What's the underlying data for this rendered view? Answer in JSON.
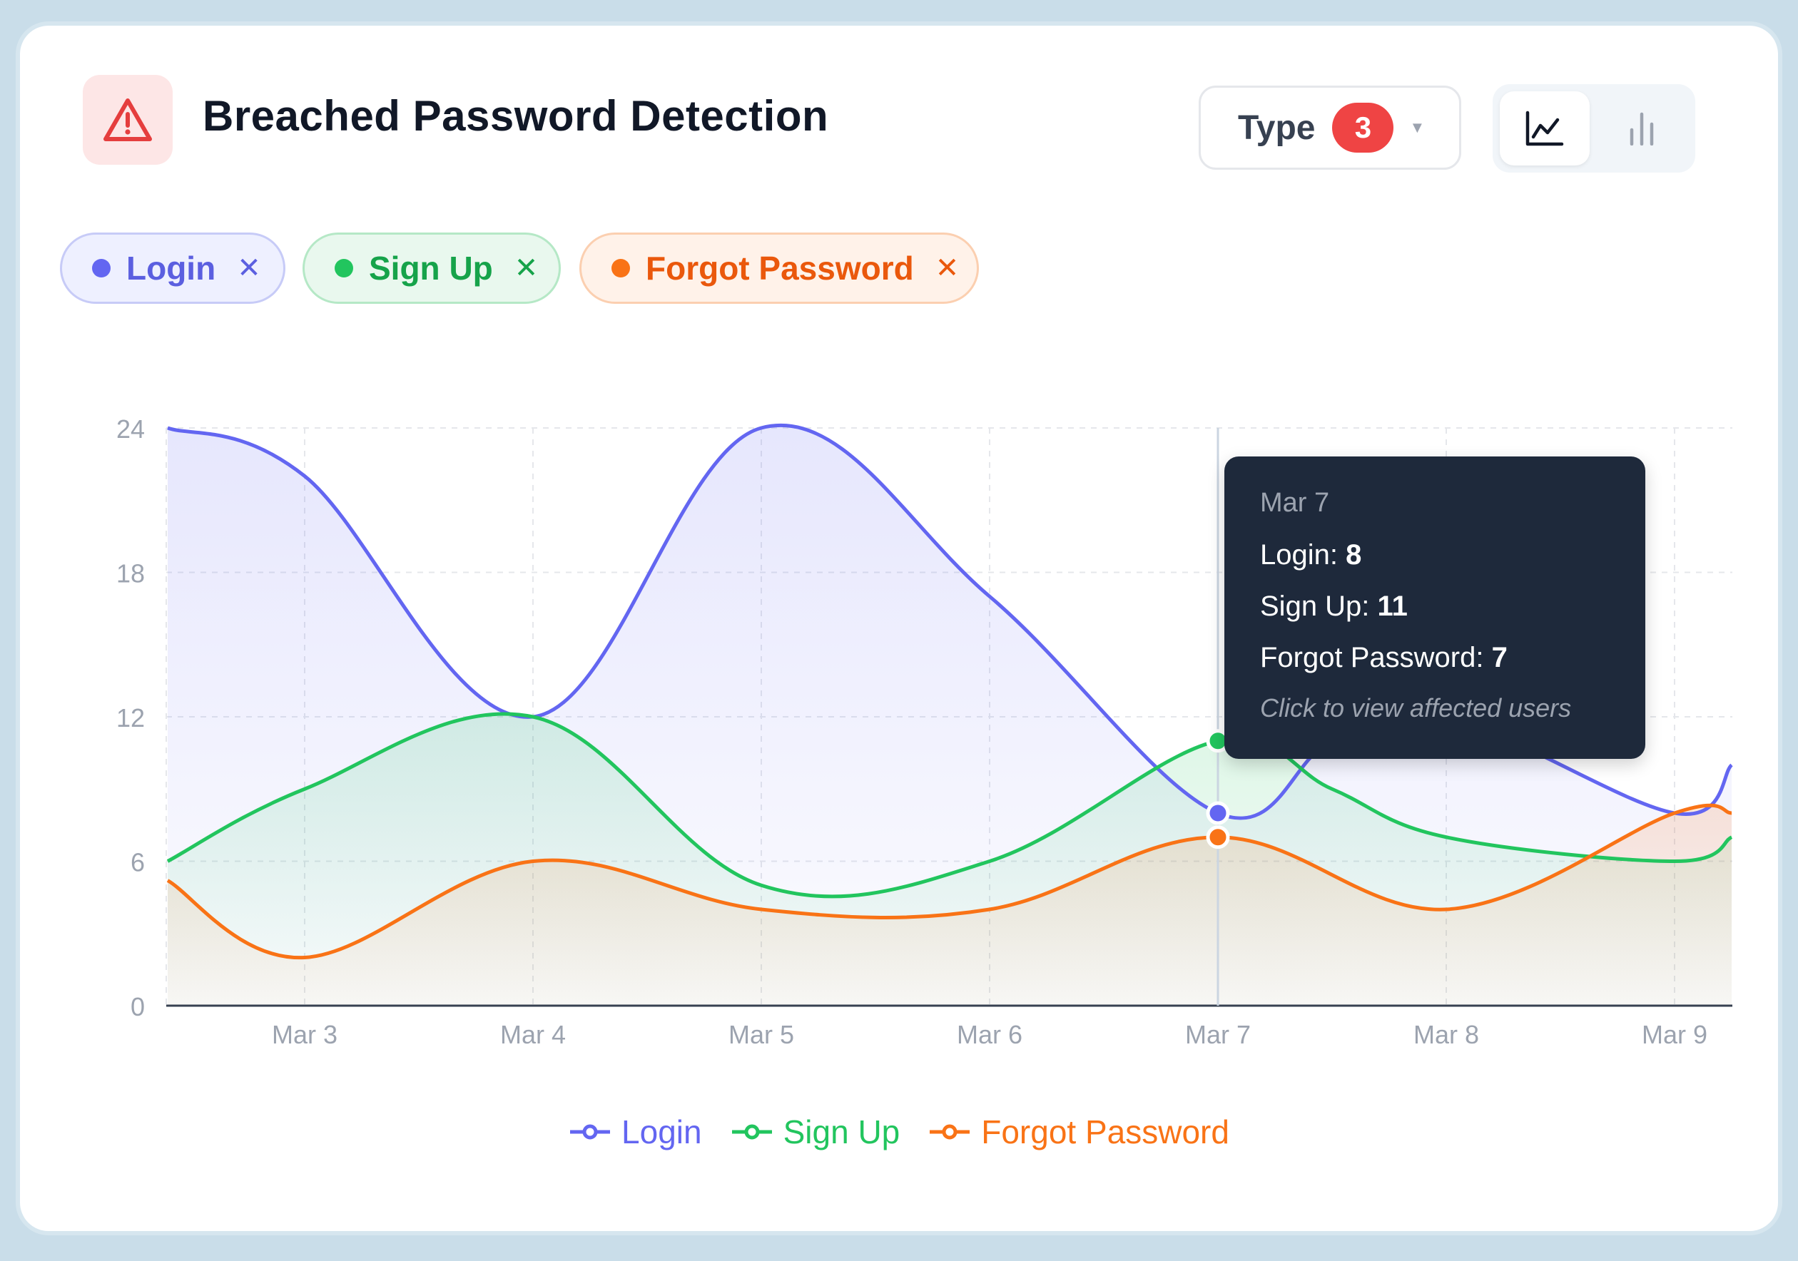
{
  "header": {
    "title": "Breached Password Detection",
    "icon": "alert-triangle-icon",
    "type_filter": {
      "label": "Type",
      "count": "3"
    },
    "view_modes": [
      {
        "name": "line-chart-icon",
        "active": true
      },
      {
        "name": "bar-chart-icon",
        "active": false
      }
    ]
  },
  "filters": [
    {
      "label": "Login",
      "color": "#6366f1"
    },
    {
      "label": "Sign Up",
      "color": "#22c55e"
    },
    {
      "label": "Forgot Password",
      "color": "#f97316"
    }
  ],
  "tooltip": {
    "date": "Mar 7",
    "rows": [
      {
        "label": "Login:",
        "value": "8"
      },
      {
        "label": "Sign Up:",
        "value": "11"
      },
      {
        "label": "Forgot Password:",
        "value": "7"
      }
    ],
    "hint": "Click to view affected users"
  },
  "chart_data": {
    "type": "area",
    "title": "",
    "xlabel": "",
    "ylabel": "",
    "x_ticks": [
      "Mar 3",
      "Mar 4",
      "Mar 5",
      "Mar 6",
      "Mar 7",
      "Mar 8",
      "Mar 9"
    ],
    "y_ticks": [
      0,
      6,
      12,
      18,
      24
    ],
    "ylim": [
      0,
      24
    ],
    "grid": true,
    "legend": "bottom-center",
    "highlight_x": "Mar 7",
    "series": [
      {
        "name": "Login",
        "color": "#6366f1",
        "points": [
          [
            -0.6,
            24
          ],
          [
            0,
            22
          ],
          [
            1,
            12
          ],
          [
            2,
            24
          ],
          [
            3,
            17
          ],
          [
            4,
            8
          ],
          [
            4.5,
            11
          ],
          [
            5,
            12
          ],
          [
            6,
            8
          ],
          [
            6.25,
            10
          ]
        ]
      },
      {
        "name": "Sign Up",
        "color": "#22c55e",
        "points": [
          [
            -0.6,
            6
          ],
          [
            0,
            9
          ],
          [
            1,
            12
          ],
          [
            2,
            5
          ],
          [
            3,
            6
          ],
          [
            4,
            11
          ],
          [
            4.5,
            9
          ],
          [
            5,
            7
          ],
          [
            6,
            6
          ],
          [
            6.25,
            7
          ]
        ]
      },
      {
        "name": "Forgot Password",
        "color": "#f97316",
        "points": [
          [
            -0.6,
            5.2
          ],
          [
            0,
            2
          ],
          [
            1,
            6
          ],
          [
            2,
            4
          ],
          [
            3,
            4
          ],
          [
            4,
            7
          ],
          [
            5,
            4
          ],
          [
            6,
            8
          ],
          [
            6.25,
            8
          ]
        ]
      }
    ]
  }
}
